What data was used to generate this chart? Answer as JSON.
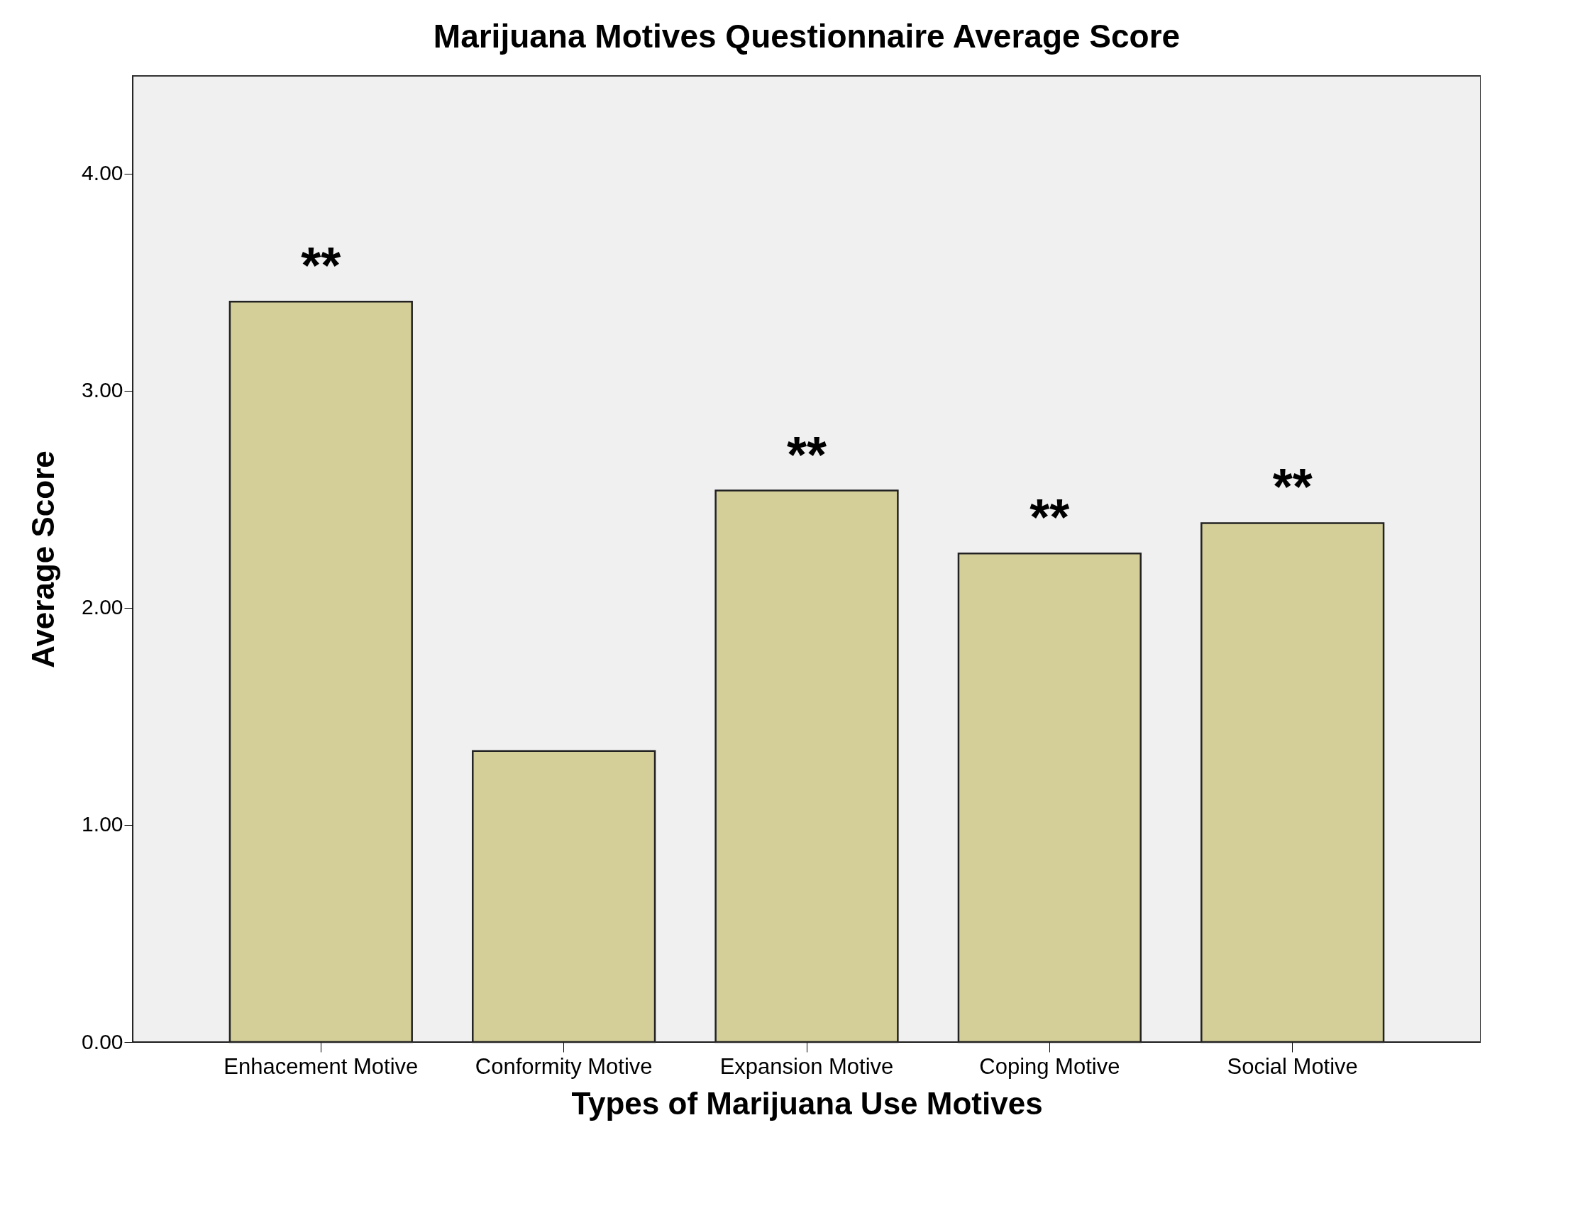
{
  "chart_data": {
    "type": "bar",
    "title": "Marijuana Motives Questionnaire Average Score",
    "xlabel": "Types of Marijuana Use Motives",
    "ylabel": "Average Score",
    "categories": [
      "Enhacement Motive",
      "Conformity Motive",
      "Expansion Motive",
      "Coping Motive",
      "Social Motive"
    ],
    "values": [
      3.41,
      1.34,
      2.54,
      2.25,
      2.39
    ],
    "color": "#d4cf99",
    "ylim": [
      0,
      4.45
    ],
    "yticks": [
      {
        "value": 0,
        "label": "0.00"
      },
      {
        "value": 1,
        "label": "1.00"
      },
      {
        "value": 2,
        "label": "2.00"
      },
      {
        "value": 3,
        "label": "3.00"
      },
      {
        "value": 4,
        "label": "4.00"
      }
    ],
    "annotations": [
      {
        "text": "**",
        "x": "Enhacement Motive",
        "y": 3.41
      },
      {
        "text": "**",
        "x": "Expansion Motive",
        "y": 2.54
      },
      {
        "text": "**",
        "x": "Coping Motive",
        "y": 2.25
      },
      {
        "text": "**",
        "x": "Social Motive",
        "y": 2.39
      }
    ],
    "grid": false
  }
}
